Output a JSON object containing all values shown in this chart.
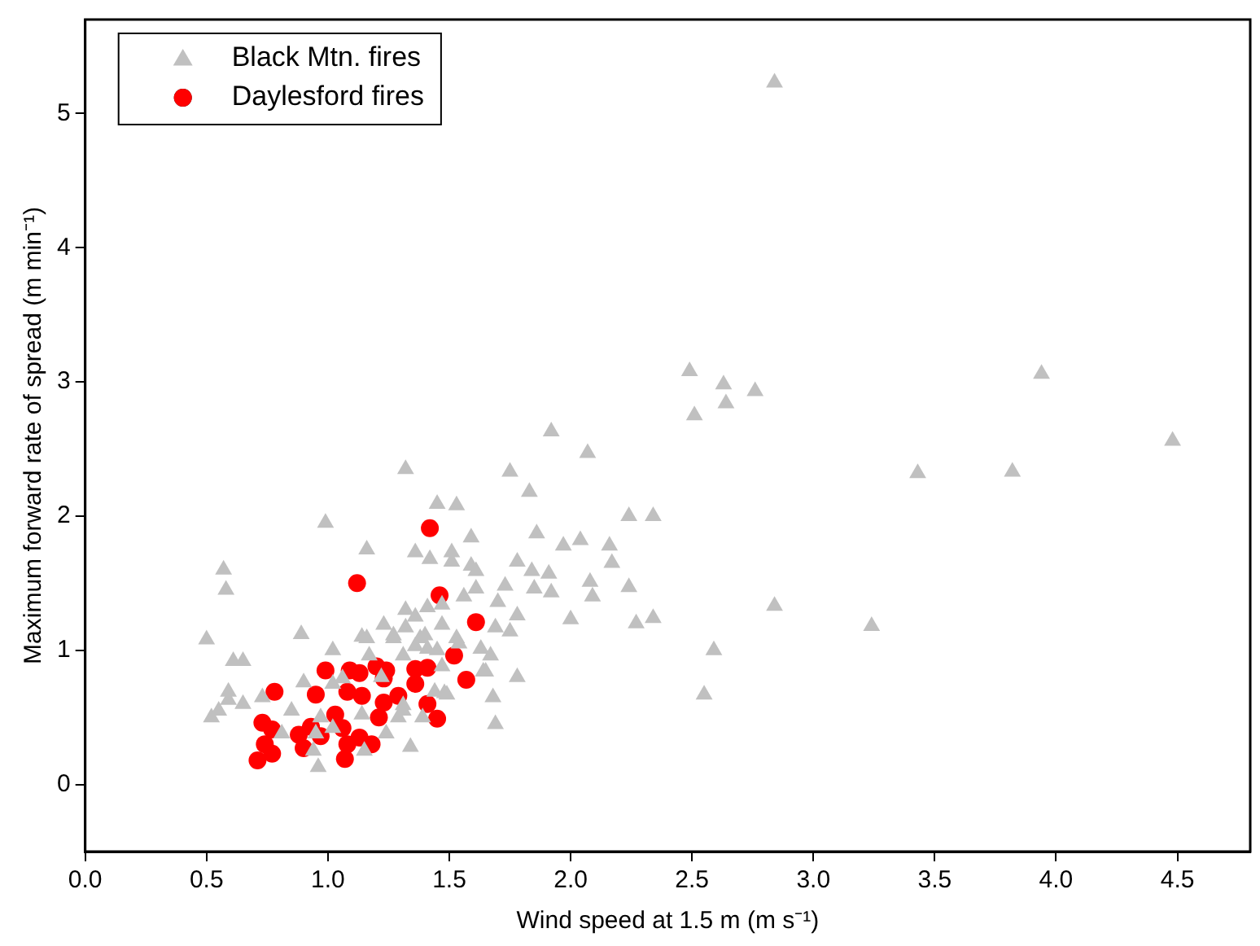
{
  "chart_data": {
    "type": "scatter",
    "xlabel": "Wind speed at 1.5 m (m s⁻¹)",
    "ylabel": "Maximum forward rate of spread (m min⁻¹)",
    "xlim": [
      0,
      4.8
    ],
    "ylim": [
      -0.5,
      5.7
    ],
    "xticks": [
      {
        "value": 0,
        "label": "0.0"
      },
      {
        "value": 0.5,
        "label": "0.5"
      },
      {
        "value": 1,
        "label": "1.0"
      },
      {
        "value": 1.5,
        "label": "1.5"
      },
      {
        "value": 2,
        "label": "2.0"
      },
      {
        "value": 2.5,
        "label": "2.5"
      },
      {
        "value": 3,
        "label": "3.0"
      },
      {
        "value": 3.5,
        "label": "3.5"
      },
      {
        "value": 4,
        "label": "4.0"
      },
      {
        "value": 4.5,
        "label": "4.5"
      }
    ],
    "yticks": [
      0,
      1,
      2,
      3,
      4,
      5
    ],
    "grid": false,
    "legend": "top left",
    "series": [
      {
        "name": "Black Mtn. fires",
        "color": "#c0c0c0",
        "marker": "triangle",
        "x": [
          2.84,
          2.49,
          2.63,
          2.76,
          2.64,
          2.51,
          3.94,
          4.48,
          3.43,
          3.82,
          2.34,
          2.84,
          2.34,
          3.24,
          2.59,
          2.55,
          2.27,
          1.92,
          2.07,
          1.32,
          1.75,
          1.83,
          1.45,
          1.53,
          2.24,
          1.16,
          1.36,
          1.42,
          1.51,
          1.59,
          1.86,
          1.97,
          2.04,
          2.16,
          2.17,
          1.78,
          1.59,
          1.61,
          1.51,
          1.84,
          1.91,
          2.08,
          2.24,
          2.09,
          1.92,
          1.73,
          1.85,
          1.61,
          1.7,
          1.56,
          1.47,
          1.41,
          1.32,
          1.36,
          1.78,
          1.69,
          1.75,
          2.0,
          1.23,
          1.47,
          1.53,
          1.32,
          1.27,
          1.4,
          1.36,
          1.67,
          1.64,
          1.78,
          1.54,
          1.45,
          1.47,
          1.49,
          1.68,
          1.69,
          1.34,
          1.39,
          1.29,
          1.16,
          1.22,
          1.31,
          0.99,
          0.57,
          0.58,
          0.5,
          0.61,
          0.65,
          0.89,
          1.02,
          1.14,
          1.27,
          1.38,
          1.31,
          1.41,
          1.63,
          1.65,
          1.17,
          0.9,
          1.02,
          1.06,
          0.59,
          0.59,
          0.65,
          0.52,
          0.55,
          0.73,
          0.85,
          0.97,
          1.14,
          1.44,
          1.48,
          0.81,
          0.94,
          0.96,
          1.15,
          1.02,
          1.24,
          1.31,
          0.95
        ],
        "values": [
          5.23,
          3.08,
          2.98,
          2.93,
          2.84,
          2.75,
          3.06,
          2.56,
          2.32,
          2.33,
          2.0,
          1.33,
          1.24,
          1.18,
          1.0,
          0.67,
          1.2,
          2.63,
          2.47,
          2.35,
          2.33,
          2.18,
          2.09,
          2.08,
          2.0,
          1.75,
          1.73,
          1.68,
          1.73,
          1.84,
          1.87,
          1.78,
          1.82,
          1.78,
          1.65,
          1.66,
          1.63,
          1.59,
          1.66,
          1.59,
          1.57,
          1.51,
          1.47,
          1.4,
          1.43,
          1.48,
          1.46,
          1.46,
          1.36,
          1.4,
          1.34,
          1.32,
          1.3,
          1.25,
          1.26,
          1.17,
          1.14,
          1.23,
          1.19,
          1.19,
          1.09,
          1.17,
          1.11,
          1.11,
          1.03,
          0.96,
          0.84,
          0.8,
          1.05,
          1.0,
          0.88,
          0.67,
          0.65,
          0.45,
          0.28,
          0.5,
          0.5,
          1.09,
          0.8,
          0.55,
          1.95,
          1.6,
          1.45,
          1.08,
          0.92,
          0.92,
          1.12,
          1.0,
          1.1,
          1.09,
          1.09,
          0.96,
          1.01,
          1.01,
          0.84,
          0.96,
          0.76,
          0.75,
          0.79,
          0.69,
          0.63,
          0.6,
          0.5,
          0.55,
          0.65,
          0.55,
          0.5,
          0.52,
          0.69,
          0.68,
          0.38,
          0.25,
          0.13,
          0.25,
          0.42,
          0.38,
          0.59,
          0.38
        ]
      },
      {
        "name": "Daylesford fires",
        "color": "#ff0000",
        "marker": "circle",
        "x": [
          1.42,
          1.12,
          1.46,
          1.61,
          1.52,
          1.57,
          0.99,
          1.09,
          1.13,
          1.2,
          1.24,
          1.23,
          1.36,
          1.41,
          1.36,
          0.78,
          0.95,
          1.08,
          1.14,
          1.29,
          1.23,
          1.41,
          1.21,
          1.45,
          1.03,
          0.73,
          0.77,
          0.93,
          0.88,
          0.97,
          1.06,
          1.1,
          1.13,
          1.18,
          0.74,
          0.9,
          0.77,
          0.71,
          1.07,
          1.08
        ],
        "values": [
          1.91,
          1.5,
          1.41,
          1.21,
          0.96,
          0.78,
          0.85,
          0.85,
          0.83,
          0.88,
          0.85,
          0.79,
          0.86,
          0.87,
          0.75,
          0.69,
          0.67,
          0.69,
          0.66,
          0.66,
          0.61,
          0.6,
          0.5,
          0.49,
          0.52,
          0.46,
          0.41,
          0.43,
          0.37,
          0.36,
          0.42,
          null,
          0.35,
          0.3,
          0.3,
          0.27,
          0.23,
          0.18,
          0.19,
          0.3
        ]
      }
    ]
  }
}
